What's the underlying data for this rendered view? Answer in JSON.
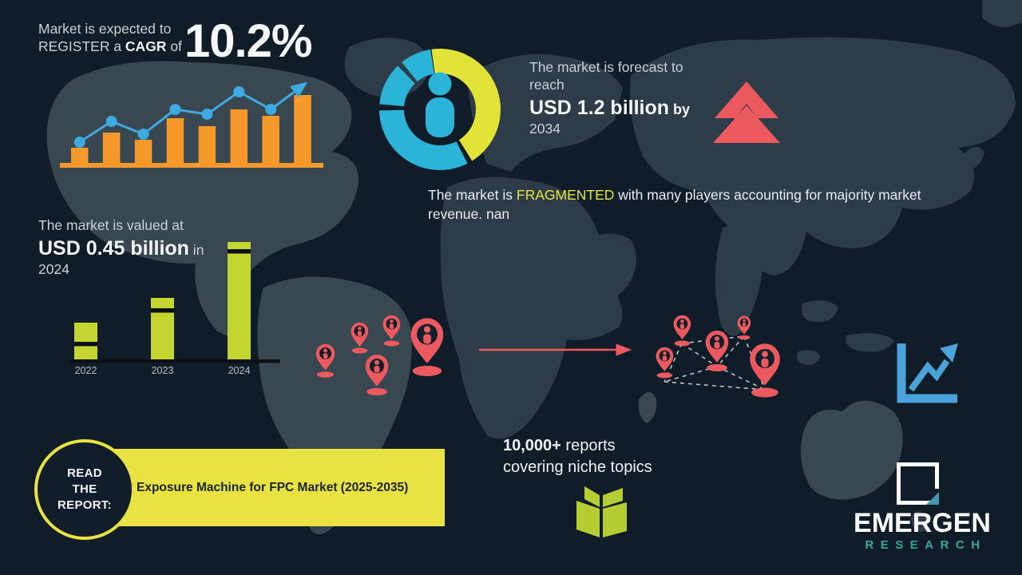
{
  "stats": {
    "cagr": {
      "line1": "Market is expected to",
      "line2_pre": "REGISTER a ",
      "line2_bold": "CAGR",
      "line2_post": " of",
      "value": "10.2%"
    },
    "forecast": {
      "line1": "The market is forecast to",
      "line2": "reach",
      "value": "USD 1.2 billion",
      "suffix": " by",
      "year": "2034"
    },
    "fragmented": {
      "pre": "The market is ",
      "highlight": "FRAGMENTED",
      "post": " with many players accounting for majority market revenue. nan"
    },
    "valued": {
      "line1": "The market is valued at",
      "value": "USD 0.45 billion",
      "suffix": " in",
      "year": "2024"
    }
  },
  "report": {
    "badge": "READ\nTHE\nREPORT:",
    "title": "Exposure Machine for FPC Market (2025-2035)"
  },
  "promo": {
    "count": "10,000+",
    "count_rest": " reports",
    "line2": "covering niche topics"
  },
  "brand": {
    "name": "EMERGEN",
    "sub": "RESEARCH"
  },
  "icons": [
    "person-icon",
    "location-pin-icon",
    "double-up-arrow-icon",
    "growth-chart-icon",
    "open-book-icon",
    "emergen-logo"
  ],
  "colors": {
    "background": "#101d28",
    "map": "#2d3c48",
    "map_light": "#394751",
    "orange": "#f5992b",
    "blue": "#3fa9e1",
    "teal": "#2bb4d8",
    "donut_yellow": "#e1e339",
    "banner_yellow": "#e8e242",
    "green": "#c3d531",
    "coral": "#ec5a60",
    "brand_teal": "#38a5a0",
    "text_light": "#c9d1d6",
    "text_white": "#f3f6f8"
  },
  "chart_data": [
    {
      "type": "bar",
      "name": "cagr-growth-chart",
      "title": "Decorative growth trend for 10.2% CAGR",
      "categories": [
        "",
        "",
        "",
        "",
        "",
        "",
        "",
        ""
      ],
      "values": [
        19,
        38,
        29,
        56,
        46,
        67,
        59,
        85
      ],
      "line_overlay": [
        26,
        52,
        36,
        67,
        61,
        89,
        67
      ],
      "bar_color": "#f5992b",
      "line_color": "#3fa9e1",
      "ylim": [
        0,
        100
      ],
      "grid": false,
      "legend": false
    },
    {
      "type": "bar",
      "name": "market-value-chart",
      "title": "Market value growth to USD 0.45 billion in 2024 (relative heights)",
      "categories": [
        "2022",
        "2023",
        "2024"
      ],
      "values": [
        46,
        77,
        147
      ],
      "stripe_offsets": [
        24,
        13,
        9
      ],
      "bar_color": "#c3d531",
      "ylim": [
        0,
        160
      ],
      "grid": false,
      "legend": false
    },
    {
      "type": "pie",
      "name": "market-share-donut",
      "title": "Fragmented market share donut (person pictogram in center)",
      "segments": [
        {
          "label": "leading-share",
          "color": "#e1e339",
          "start_deg": -8,
          "end_deg": 148
        },
        {
          "label": "share-2",
          "color": "#2bb4d8",
          "start_deg": 153,
          "end_deg": 269
        },
        {
          "label": "share-3",
          "color": "#2bb4d8",
          "start_deg": 275,
          "end_deg": 316
        },
        {
          "label": "share-4",
          "color": "#2bb4d8",
          "start_deg": 321,
          "end_deg": 351
        }
      ]
    }
  ]
}
